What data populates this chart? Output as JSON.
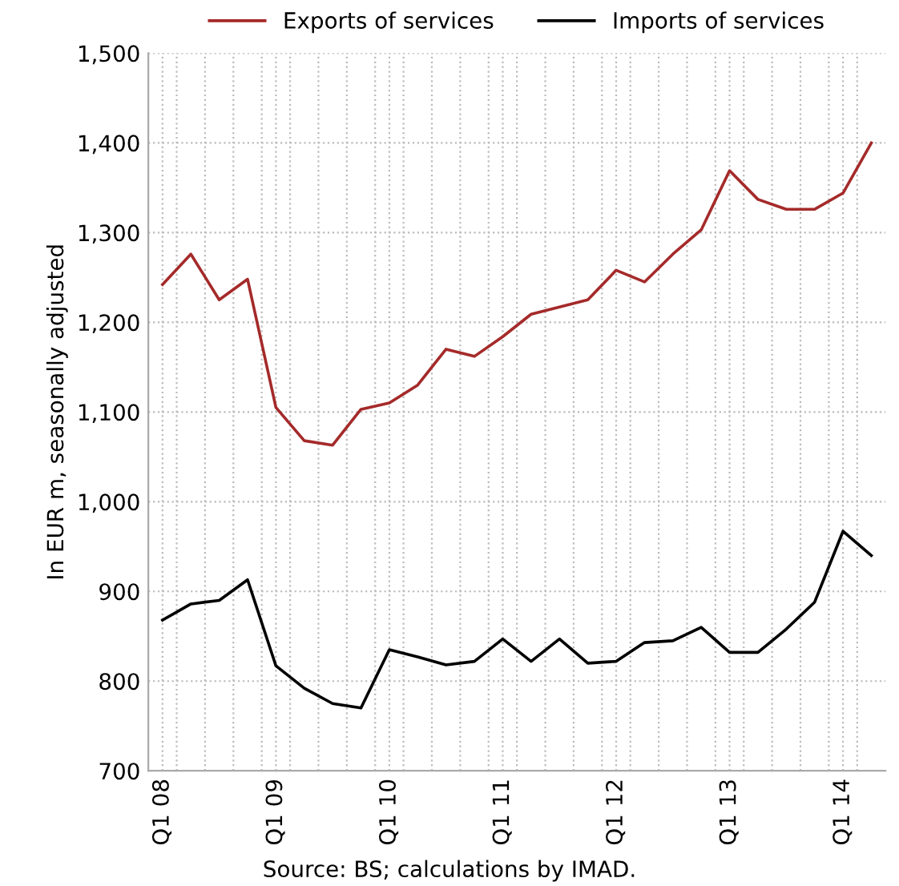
{
  "chart_data": {
    "type": "line",
    "ylabel": "In EUR m, seasonally adjusted",
    "categories": [
      "Q1 08",
      null,
      null,
      null,
      "Q1 09",
      null,
      null,
      null,
      "Q1 10",
      null,
      null,
      null,
      "Q1 11",
      null,
      null,
      null,
      "Q1 12",
      null,
      null,
      null,
      "Q1 13",
      null,
      null,
      null,
      "Q1 14",
      null
    ],
    "series": [
      {
        "name": "Exports of services",
        "color": "#a52a2a",
        "values": [
          1242,
          1276,
          1225,
          1248,
          1105,
          1068,
          1063,
          1103,
          1110,
          1130,
          1170,
          1162,
          1184,
          1209,
          1217,
          1225,
          1258,
          1245,
          1276,
          1303,
          1369,
          1337,
          1326,
          1326,
          1344,
          1400
        ]
      },
      {
        "name": "Imports of services",
        "color": "#000000",
        "values": [
          868,
          886,
          890,
          913,
          817,
          792,
          775,
          770,
          835,
          827,
          818,
          822,
          847,
          822,
          847,
          820,
          822,
          843,
          845,
          860,
          832,
          832,
          858,
          888,
          967,
          940
        ]
      }
    ],
    "ylim": [
      700,
      1500
    ],
    "yticks": [
      700,
      800,
      900,
      {
        "value": 1000,
        "label": "1,000"
      },
      {
        "value": 1100,
        "label": "1,100"
      },
      {
        "value": 1200,
        "label": "1,200"
      },
      {
        "value": 1300,
        "label": "1,300"
      },
      {
        "value": 1400,
        "label": "1,400"
      },
      {
        "value": 1500,
        "label": "1,500"
      }
    ],
    "grid": true,
    "legend": "top",
    "annotations": [
      "Source: BS; calculations by IMAD."
    ]
  }
}
